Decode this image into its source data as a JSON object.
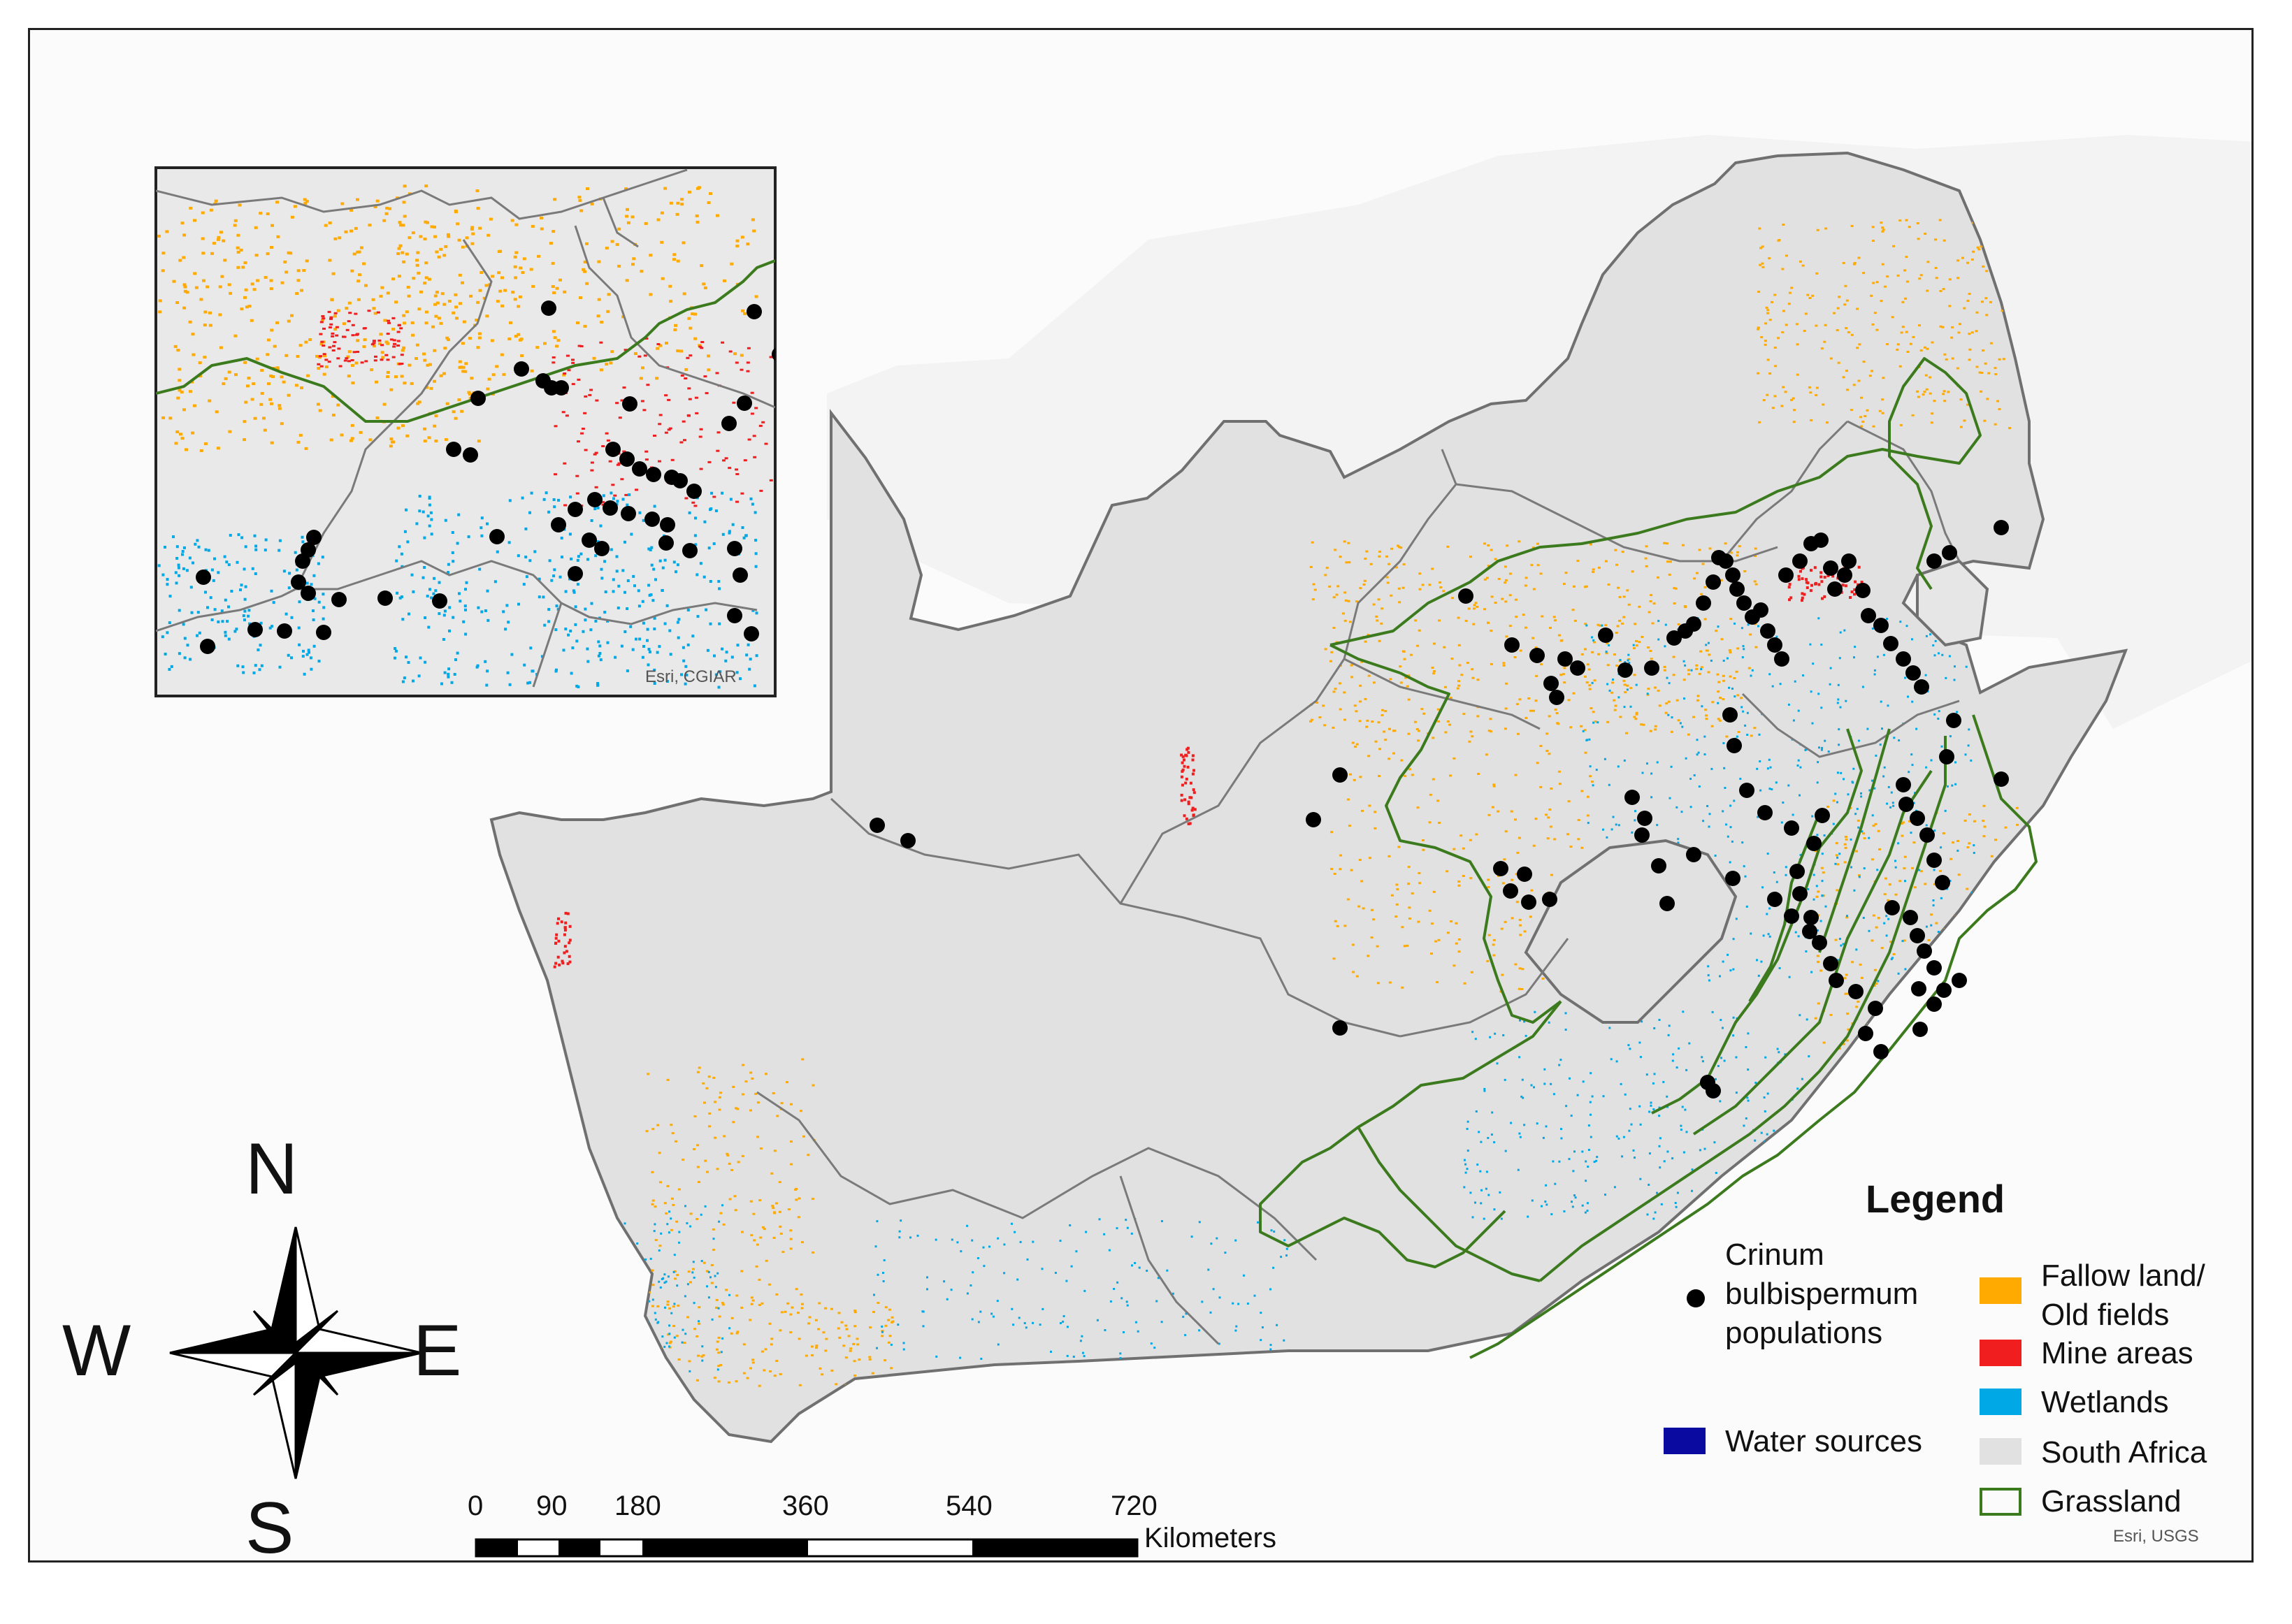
{
  "legend": {
    "title": "Legend",
    "items": [
      {
        "label": "Crinum bulbispermum populations",
        "lines": [
          "Crinum",
          "bulbispermum",
          "populations"
        ],
        "symbol": "point",
        "color": "#000000"
      },
      {
        "label": "Fallow land/ Old fields",
        "lines": [
          "Fallow land/",
          "Old fields"
        ],
        "symbol": "fill",
        "color": "#ffaa00"
      },
      {
        "label": "Mine areas",
        "symbol": "fill",
        "color": "#f01e1e"
      },
      {
        "label": "Wetlands",
        "symbol": "fill",
        "color": "#00a8e6"
      },
      {
        "label": "Water sources",
        "symbol": "fill",
        "color": "#0a0aa0"
      },
      {
        "label": "South Africa",
        "symbol": "fill",
        "color": "#e1e1e1"
      },
      {
        "label": "Grassland",
        "symbol": "outline",
        "color": "#3c7a1e"
      }
    ]
  },
  "compass": {
    "n": "N",
    "s": "S",
    "e": "E",
    "w": "W"
  },
  "scale_bar": {
    "unit": "Kilometers",
    "ticks": [
      "0",
      "90",
      "180",
      "360",
      "540",
      "720"
    ]
  },
  "credits": {
    "main": "Esri, USGS",
    "inset": "Esri, CGIAR"
  },
  "colors": {
    "country": "#e1e1e1",
    "border": "#707070",
    "grassland": "#3c7a1e",
    "point": "#000000",
    "fallow": "#ffaa00",
    "mine": "#f01e1e",
    "wetland": "#00a8e6",
    "water": "#0a0aa0"
  }
}
